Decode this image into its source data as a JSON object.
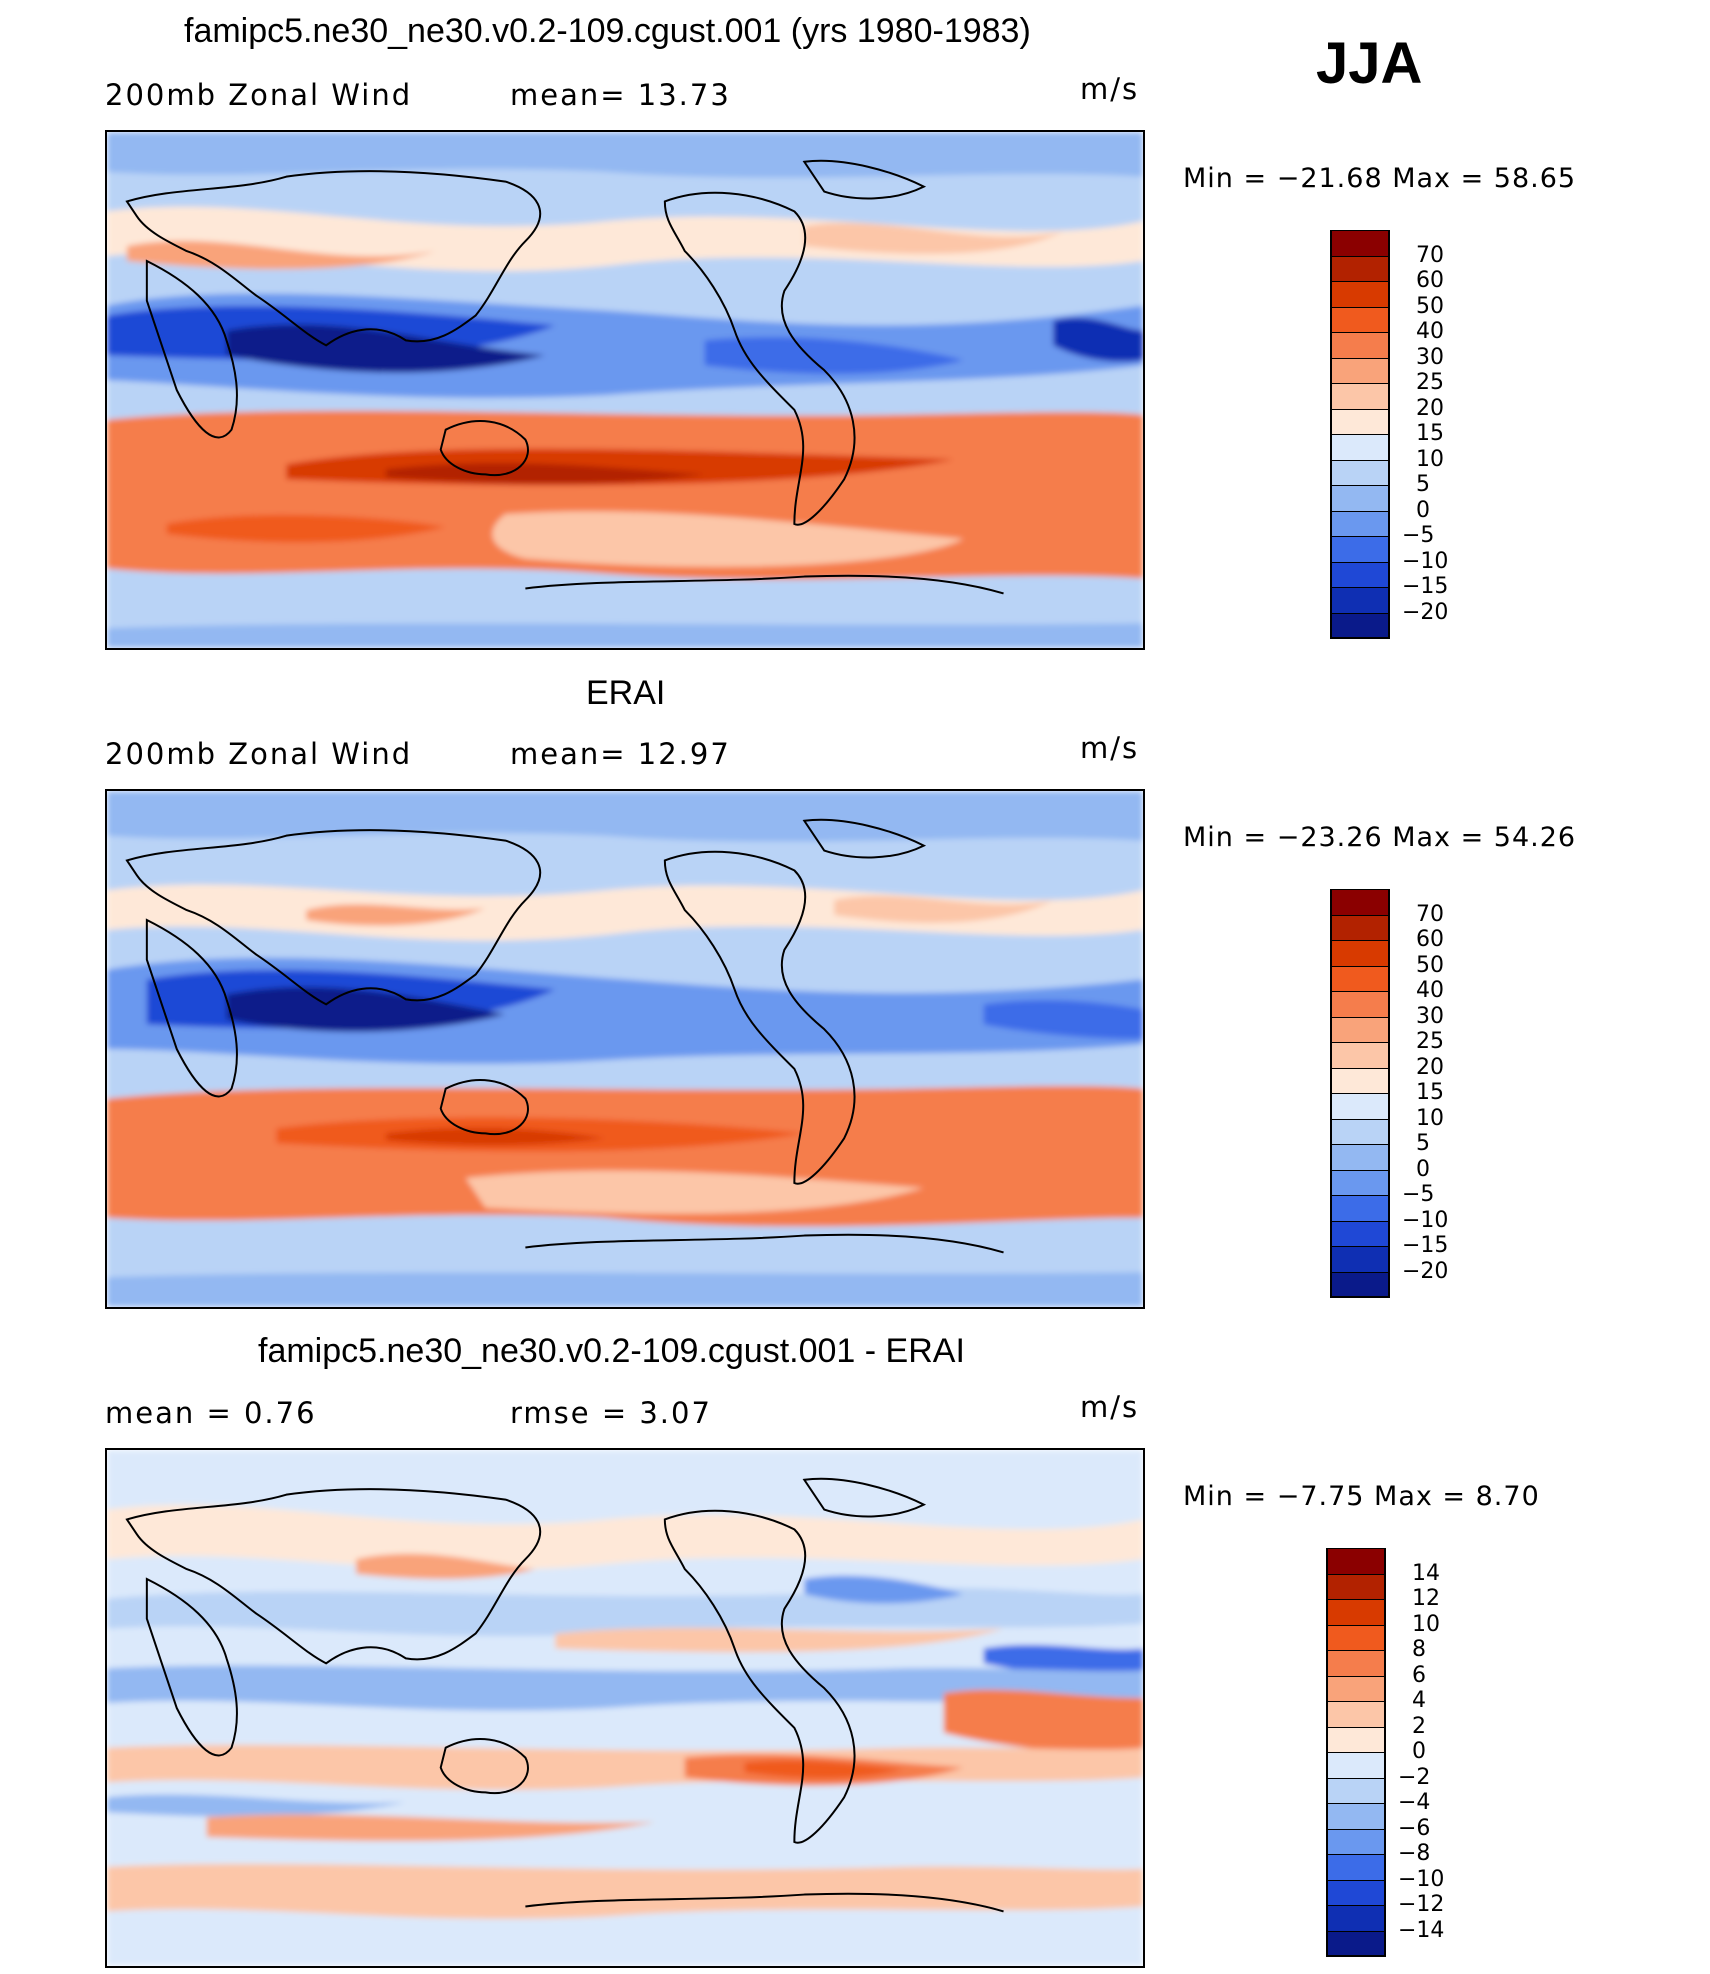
{
  "season": "JJA",
  "panels": [
    {
      "id": "model",
      "title": "famipc5.ne30_ne30.v0.2-109.cgust.001 (yrs 1980-1983)",
      "left_label": "200mb  Zonal  Wind",
      "mid_label": "mean=   13.73",
      "units": "m/s",
      "minmax": "Min  =  −21.68  Max  =    58.65",
      "colorbar": "abs"
    },
    {
      "id": "obs",
      "title": "ERAI",
      "left_label": "200mb  Zonal  Wind",
      "mid_label": "mean=   12.97",
      "units": "m/s",
      "minmax": "Min  =  −23.26  Max  =    54.26",
      "colorbar": "abs"
    },
    {
      "id": "diff",
      "title": "famipc5.ne30_ne30.v0.2-109.cgust.001 - ERAI",
      "left_label": "mean  =     0.76",
      "mid_label": "rmse  =     3.07",
      "units": "m/s",
      "minmax": "Min  =    −7.75  Max  =     8.70",
      "colorbar": "diff"
    }
  ],
  "colorbars": {
    "abs": {
      "labels": [
        "70",
        "60",
        "50",
        "40",
        "30",
        "25",
        "20",
        "15",
        "10",
        "5",
        "0",
        "−5",
        "−10",
        "−15",
        "−20"
      ],
      "colors": [
        "#8b0000",
        "#b22200",
        "#d83a00",
        "#f05a1e",
        "#f57d4c",
        "#f9a37a",
        "#fcc6a8",
        "#fee8d8",
        "#dbe9fb",
        "#b9d3f6",
        "#93b8f2",
        "#6a98ef",
        "#3c6ce8",
        "#1f48d6",
        "#0f2fb3",
        "#0a1a8a"
      ]
    },
    "diff": {
      "labels": [
        "14",
        "12",
        "10",
        "8",
        "6",
        "4",
        "2",
        "0",
        "−2",
        "−4",
        "−6",
        "−8",
        "−10",
        "−12",
        "−14"
      ],
      "colors": [
        "#8b0000",
        "#b22200",
        "#d83a00",
        "#f05a1e",
        "#f57d4c",
        "#f9a37a",
        "#fcc6a8",
        "#fee8d8",
        "#dbe9fb",
        "#b9d3f6",
        "#93b8f2",
        "#6a98ef",
        "#3c6ce8",
        "#1f48d6",
        "#0f2fb3",
        "#0a1a8a"
      ]
    }
  }
}
